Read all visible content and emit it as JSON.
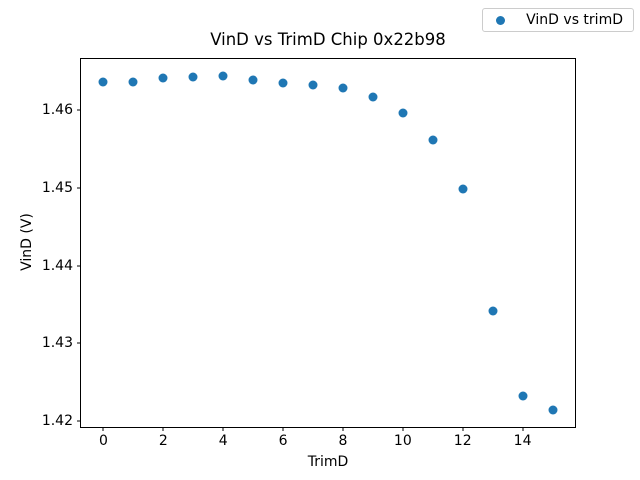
{
  "chart_data": {
    "type": "scatter",
    "title": "VinD vs TrimD Chip 0x22b98",
    "xlabel": "TrimD",
    "ylabel": "VinD (V)",
    "legend": {
      "label": "VinD vs trimD",
      "position": "upper right"
    },
    "x": [
      0,
      1,
      2,
      3,
      4,
      5,
      6,
      7,
      8,
      9,
      10,
      11,
      12,
      13,
      14,
      15
    ],
    "y": [
      1.4636,
      1.4636,
      1.4641,
      1.4643,
      1.4644,
      1.4638,
      1.4635,
      1.4632,
      1.4628,
      1.4617,
      1.4596,
      1.4562,
      1.4499,
      1.4341,
      1.4232,
      1.4214
    ],
    "xlim": [
      -0.75,
      15.75
    ],
    "ylim": [
      1.41925,
      1.46655
    ],
    "xticks": {
      "values": [
        0,
        2,
        4,
        6,
        8,
        10,
        12,
        14
      ],
      "labels": [
        "0",
        "2",
        "4",
        "6",
        "8",
        "10",
        "12",
        "14"
      ]
    },
    "yticks": {
      "values": [
        1.42,
        1.43,
        1.44,
        1.45,
        1.46
      ],
      "labels": [
        "1.42",
        "1.43",
        "1.44",
        "1.45",
        "1.46"
      ]
    },
    "grid": false,
    "marker_color": "#1f77b4",
    "axes_color": "#000000",
    "background_color": "#ffffff"
  }
}
